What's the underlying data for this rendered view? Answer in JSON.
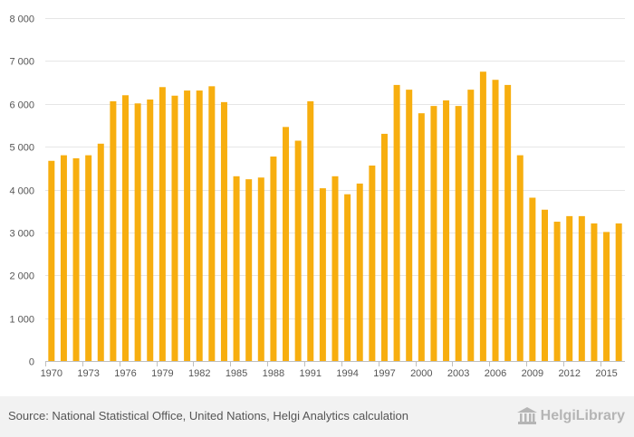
{
  "chart_data": {
    "type": "bar",
    "title": "",
    "xlabel": "",
    "ylabel": "",
    "ylim": [
      0,
      8000
    ],
    "yticks": [
      0,
      1000,
      2000,
      3000,
      4000,
      5000,
      6000,
      7000,
      8000
    ],
    "ytick_labels": [
      "0",
      "1 000",
      "2 000",
      "3 000",
      "4 000",
      "5 000",
      "6 000",
      "7 000",
      "8 000"
    ],
    "xtick_labels": [
      "1970",
      "1973",
      "1976",
      "1979",
      "1982",
      "1985",
      "1988",
      "1991",
      "1994",
      "1997",
      "2000",
      "2003",
      "2006",
      "2009",
      "2012",
      "2015"
    ],
    "grid": true,
    "bar_color": "#f7ae0f",
    "categories": [
      "1970",
      "1971",
      "1972",
      "1973",
      "1974",
      "1975",
      "1976",
      "1977",
      "1978",
      "1979",
      "1980",
      "1981",
      "1982",
      "1983",
      "1984",
      "1985",
      "1986",
      "1987",
      "1988",
      "1989",
      "1990",
      "1991",
      "1992",
      "1993",
      "1994",
      "1995",
      "1996",
      "1997",
      "1998",
      "1999",
      "2000",
      "2001",
      "2002",
      "2003",
      "2004",
      "2005",
      "2006",
      "2007",
      "2008",
      "2009",
      "2010",
      "2011",
      "2012",
      "2013",
      "2014",
      "2015",
      "2016"
    ],
    "values": [
      4670,
      4800,
      4730,
      4800,
      5070,
      6060,
      6200,
      6010,
      6100,
      6390,
      6190,
      6310,
      6310,
      6410,
      6040,
      4310,
      4240,
      4280,
      4770,
      5460,
      5140,
      6060,
      4030,
      4310,
      3890,
      4140,
      4560,
      5300,
      6440,
      6330,
      5780,
      5950,
      6080,
      5950,
      6330,
      6750,
      6560,
      6440,
      4800,
      3810,
      3530,
      3250,
      3380,
      3380,
      3210,
      3010,
      3210
    ]
  },
  "footer": {
    "source": "Source: National Statistical Office, United Nations, Helgi Analytics calculation",
    "logo": "HelgiLibrary"
  }
}
